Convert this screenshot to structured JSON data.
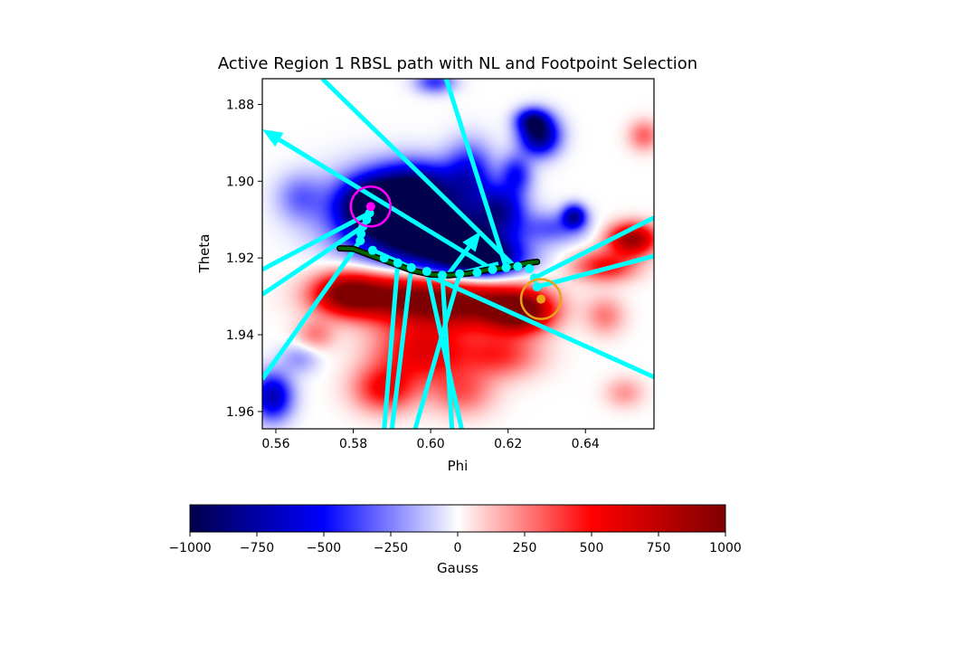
{
  "chart_data": [
    {
      "type": "heatmap",
      "title": "Active Region 1 RBSL path with NL and Footpoint Selection",
      "xlabel": "Phi",
      "ylabel": "Theta",
      "xlim": [
        0.5565,
        0.6577
      ],
      "ylim": [
        1.9645,
        1.8733
      ],
      "y_inverted": true,
      "xticks": [
        0.56,
        0.58,
        0.6,
        0.62,
        0.64
      ],
      "xtick_labels": [
        "0.56",
        "0.58",
        "0.60",
        "0.62",
        "0.64"
      ],
      "yticks": [
        1.88,
        1.9,
        1.92,
        1.94,
        1.96
      ],
      "ytick_labels": [
        "1.88",
        "1.90",
        "1.92",
        "1.94",
        "1.96"
      ],
      "colormap": "seismic",
      "colors": {
        "polarity_line": "#006400",
        "polarity_line_edge": "#000000",
        "field_lines": "#00ffff",
        "path_points": "#00ffff",
        "negative_footpoint": "#ff00ff",
        "positive_footpoint": "#e8a317"
      },
      "blobs": [
        {
          "x": 0.591,
          "y": 1.908,
          "value": -950,
          "rx": 0.016,
          "ry": 0.01
        },
        {
          "x": 0.603,
          "y": 1.915,
          "value": -1000,
          "rx": 0.016,
          "ry": 0.008
        },
        {
          "x": 0.613,
          "y": 1.92,
          "value": -900,
          "rx": 0.01,
          "ry": 0.005
        },
        {
          "x": 0.584,
          "y": 1.906,
          "value": -700,
          "rx": 0.007,
          "ry": 0.006
        },
        {
          "x": 0.596,
          "y": 1.901,
          "value": -600,
          "rx": 0.01,
          "ry": 0.006
        },
        {
          "x": 0.61,
          "y": 1.898,
          "value": -500,
          "rx": 0.006,
          "ry": 0.008
        },
        {
          "x": 0.618,
          "y": 1.907,
          "value": -600,
          "rx": 0.006,
          "ry": 0.006
        },
        {
          "x": 0.628,
          "y": 1.888,
          "value": -900,
          "rx": 0.005,
          "ry": 0.005
        },
        {
          "x": 0.626,
          "y": 1.884,
          "value": -600,
          "rx": 0.004,
          "ry": 0.003
        },
        {
          "x": 0.622,
          "y": 1.898,
          "value": -450,
          "rx": 0.004,
          "ry": 0.005
        },
        {
          "x": 0.637,
          "y": 1.909,
          "value": -700,
          "rx": 0.003,
          "ry": 0.003
        },
        {
          "x": 0.601,
          "y": 1.874,
          "value": -400,
          "rx": 0.005,
          "ry": 0.003
        },
        {
          "x": 0.559,
          "y": 1.956,
          "value": -700,
          "rx": 0.005,
          "ry": 0.006
        },
        {
          "x": 0.566,
          "y": 1.946,
          "value": -200,
          "rx": 0.005,
          "ry": 0.004
        },
        {
          "x": 0.566,
          "y": 1.904,
          "value": -250,
          "rx": 0.006,
          "ry": 0.006
        },
        {
          "x": 0.632,
          "y": 1.912,
          "value": -300,
          "rx": 0.008,
          "ry": 0.004
        },
        {
          "x": 0.59,
          "y": 1.93,
          "value": 850,
          "rx": 0.016,
          "ry": 0.006
        },
        {
          "x": 0.61,
          "y": 1.932,
          "value": 850,
          "rx": 0.016,
          "ry": 0.006
        },
        {
          "x": 0.623,
          "y": 1.934,
          "value": 950,
          "rx": 0.008,
          "ry": 0.005
        },
        {
          "x": 0.578,
          "y": 1.929,
          "value": 700,
          "rx": 0.008,
          "ry": 0.005
        },
        {
          "x": 0.598,
          "y": 1.944,
          "value": 600,
          "rx": 0.012,
          "ry": 0.008
        },
        {
          "x": 0.618,
          "y": 1.945,
          "value": 400,
          "rx": 0.01,
          "ry": 0.006
        },
        {
          "x": 0.588,
          "y": 1.954,
          "value": 500,
          "rx": 0.008,
          "ry": 0.006
        },
        {
          "x": 0.608,
          "y": 1.955,
          "value": 300,
          "rx": 0.008,
          "ry": 0.006
        },
        {
          "x": 0.652,
          "y": 1.915,
          "value": 900,
          "rx": 0.006,
          "ry": 0.004
        },
        {
          "x": 0.645,
          "y": 1.922,
          "value": 500,
          "rx": 0.008,
          "ry": 0.004
        },
        {
          "x": 0.655,
          "y": 1.888,
          "value": 300,
          "rx": 0.004,
          "ry": 0.004
        },
        {
          "x": 0.645,
          "y": 1.935,
          "value": 250,
          "rx": 0.005,
          "ry": 0.005
        },
        {
          "x": 0.57,
          "y": 1.94,
          "value": 250,
          "rx": 0.005,
          "ry": 0.004
        },
        {
          "x": 0.65,
          "y": 1.955,
          "value": 200,
          "rx": 0.005,
          "ry": 0.004
        }
      ],
      "polarity_inversion_line": {
        "x": [
          0.5765,
          0.58,
          0.585,
          0.59,
          0.595,
          0.6,
          0.605,
          0.61,
          0.615,
          0.62,
          0.625,
          0.6275
        ],
        "y": [
          1.9175,
          1.9176,
          1.9195,
          1.9213,
          1.9232,
          1.9243,
          1.9245,
          1.924,
          1.923,
          1.9225,
          1.9213,
          1.921
        ]
      },
      "path_points": {
        "x": [
          0.5842,
          0.5835,
          0.5825,
          0.582,
          0.5818,
          0.585,
          0.588,
          0.5915,
          0.595,
          0.599,
          0.603,
          0.6075,
          0.612,
          0.616,
          0.6195,
          0.6225,
          0.6255,
          0.6268,
          0.6275
        ],
        "y": [
          1.9083,
          1.91,
          1.9118,
          1.9137,
          1.9155,
          1.918,
          1.92,
          1.9213,
          1.9225,
          1.9235,
          1.9245,
          1.9241,
          1.9238,
          1.923,
          1.9225,
          1.9222,
          1.9228,
          1.9252,
          1.9275
        ]
      },
      "field_lines": [
        [
          [
            0.5842,
            1.9083
          ],
          [
            0.5565,
            1.923
          ]
        ],
        [
          [
            0.5825,
            1.9118
          ],
          [
            0.5565,
            1.9295
          ]
        ],
        [
          [
            0.5818,
            1.9155
          ],
          [
            0.5565,
            1.9515
          ]
        ],
        [
          [
            0.572,
            1.8733
          ],
          [
            0.622,
            1.9225
          ]
        ],
        [
          [
            0.604,
            1.8733
          ],
          [
            0.6195,
            1.9225
          ]
        ],
        [
          [
            0.585,
            1.918
          ],
          [
            0.6577,
            1.951
          ]
        ],
        [
          [
            0.5915,
            1.9213
          ],
          [
            0.588,
            1.9645
          ]
        ],
        [
          [
            0.595,
            1.9225
          ],
          [
            0.59,
            1.9645
          ]
        ],
        [
          [
            0.599,
            1.9235
          ],
          [
            0.608,
            1.9645
          ]
        ],
        [
          [
            0.603,
            1.9245
          ],
          [
            0.6055,
            1.9645
          ]
        ],
        [
          [
            0.6075,
            1.9241
          ],
          [
            0.596,
            1.9645
          ]
        ],
        [
          [
            0.6268,
            1.9252
          ],
          [
            0.6577,
            1.9095
          ]
        ],
        [
          [
            0.6275,
            1.9275
          ],
          [
            0.6577,
            1.9195
          ]
        ],
        [
          [
            0.6175,
            1.9215
          ],
          [
            0.604,
            1.925
          ]
        ]
      ],
      "arrows": [
        {
          "from": [
            0.616,
            1.923
          ],
          "to": [
            0.5565,
            1.8865
          ]
        },
        {
          "from": [
            0.604,
            1.925
          ],
          "to": [
            0.613,
            1.913
          ]
        }
      ],
      "footpoints": {
        "negative": {
          "x": 0.5845,
          "y": 1.9066
        },
        "positive": {
          "x": 0.6285,
          "y": 1.9307
        }
      }
    },
    {
      "type": "colorbar",
      "label": "Gauss",
      "range": [
        -1000,
        1000
      ],
      "ticks": [
        -1000,
        -750,
        -500,
        -250,
        0,
        250,
        500,
        750,
        1000
      ],
      "tick_labels": [
        "−1000",
        "−750",
        "−500",
        "−250",
        "0",
        "250",
        "500",
        "750",
        "1000"
      ],
      "stops": [
        "#00004c",
        "#0000ff",
        "#ffffff",
        "#ff0000",
        "#7f0000"
      ]
    }
  ]
}
